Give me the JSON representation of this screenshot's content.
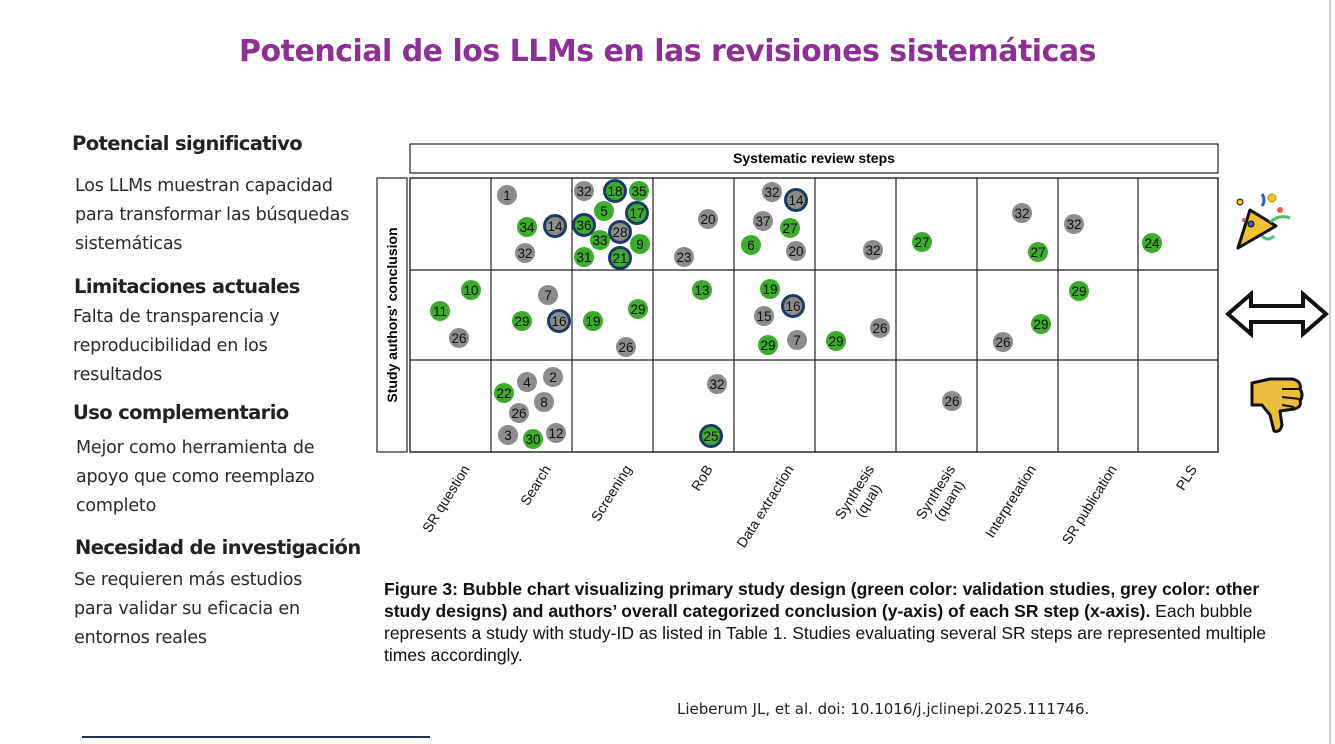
{
  "title": "Potencial de los LLMs en las revisiones sistemáticas",
  "sections": [
    {
      "heading": "Potencial significativo",
      "body": "Los LLMs muestran capacidad para transformar las búsquedas sistemáticas"
    },
    {
      "heading": "Limitaciones actuales",
      "body": "Falta de transparencia y reproducibilidad en los resultados"
    },
    {
      "heading": "Uso complementario",
      "body": "Mejor como herramienta de apoyo que como reemplazo completo"
    },
    {
      "heading": "Necesidad de investigación",
      "body": "Se requieren más estudios para validar su eficacia en entornos reales"
    }
  ],
  "chart_data": {
    "type": "scatter",
    "title": "Systematic review steps",
    "ylabel": "Study authors' conclusion",
    "categories": [
      "SR question",
      "Search",
      "Screening",
      "RoB",
      "Data extraction",
      "Synthesis\n(qual)",
      "Synthesis\n(quant)",
      "Interpretation",
      "SR publication",
      "PLS"
    ],
    "rows": [
      "positive",
      "neutral",
      "negative"
    ],
    "row_icons": [
      "party-popper-icon",
      "double-arrow-icon",
      "thumbs-down-icon"
    ],
    "colors": {
      "validation": "#3dab2b",
      "other": "#8c8c8c",
      "outline": "#1c3a66"
    },
    "bubbles": [
      {
        "id": "1",
        "step": "Search",
        "row": "positive",
        "design": "other",
        "outlined": false
      },
      {
        "id": "34",
        "step": "Search",
        "row": "positive",
        "design": "validation",
        "outlined": false
      },
      {
        "id": "14",
        "step": "Search",
        "row": "positive",
        "design": "other",
        "outlined": true
      },
      {
        "id": "32",
        "step": "Search",
        "row": "positive",
        "design": "other",
        "outlined": false
      },
      {
        "id": "32",
        "step": "Screening",
        "row": "positive",
        "design": "other",
        "outlined": false
      },
      {
        "id": "18",
        "step": "Screening",
        "row": "positive",
        "design": "validation",
        "outlined": true
      },
      {
        "id": "35",
        "step": "Screening",
        "row": "positive",
        "design": "validation",
        "outlined": false
      },
      {
        "id": "5",
        "step": "Screening",
        "row": "positive",
        "design": "validation",
        "outlined": false
      },
      {
        "id": "17",
        "step": "Screening",
        "row": "positive",
        "design": "validation",
        "outlined": true
      },
      {
        "id": "36",
        "step": "Screening",
        "row": "positive",
        "design": "validation",
        "outlined": true
      },
      {
        "id": "28",
        "step": "Screening",
        "row": "positive",
        "design": "other",
        "outlined": true
      },
      {
        "id": "33",
        "step": "Screening",
        "row": "positive",
        "design": "validation",
        "outlined": false
      },
      {
        "id": "9",
        "step": "Screening",
        "row": "positive",
        "design": "validation",
        "outlined": false
      },
      {
        "id": "31",
        "step": "Screening",
        "row": "positive",
        "design": "validation",
        "outlined": false
      },
      {
        "id": "21",
        "step": "Screening",
        "row": "positive",
        "design": "validation",
        "outlined": true
      },
      {
        "id": "20",
        "step": "RoB",
        "row": "positive",
        "design": "other",
        "outlined": false
      },
      {
        "id": "23",
        "step": "RoB",
        "row": "positive",
        "design": "other",
        "outlined": false
      },
      {
        "id": "32",
        "step": "Data extraction",
        "row": "positive",
        "design": "other",
        "outlined": false
      },
      {
        "id": "14",
        "step": "Data extraction",
        "row": "positive",
        "design": "other",
        "outlined": true
      },
      {
        "id": "37",
        "step": "Data extraction",
        "row": "positive",
        "design": "other",
        "outlined": false
      },
      {
        "id": "27",
        "step": "Data extraction",
        "row": "positive",
        "design": "validation",
        "outlined": false
      },
      {
        "id": "6",
        "step": "Data extraction",
        "row": "positive",
        "design": "validation",
        "outlined": false
      },
      {
        "id": "20",
        "step": "Data extraction",
        "row": "positive",
        "design": "other",
        "outlined": false
      },
      {
        "id": "32",
        "step": "Synthesis (qual)",
        "row": "positive",
        "design": "other",
        "outlined": false
      },
      {
        "id": "27",
        "step": "Synthesis (quant)",
        "row": "positive",
        "design": "validation",
        "outlined": false
      },
      {
        "id": "32",
        "step": "Interpretation",
        "row": "positive",
        "design": "other",
        "outlined": false
      },
      {
        "id": "27",
        "step": "Interpretation",
        "row": "positive",
        "design": "validation",
        "outlined": false
      },
      {
        "id": "32",
        "step": "SR publication",
        "row": "positive",
        "design": "other",
        "outlined": false
      },
      {
        "id": "24",
        "step": "PLS",
        "row": "positive",
        "design": "validation",
        "outlined": false
      },
      {
        "id": "10",
        "step": "SR question",
        "row": "neutral",
        "design": "validation",
        "outlined": false
      },
      {
        "id": "11",
        "step": "SR question",
        "row": "neutral",
        "design": "validation",
        "outlined": false
      },
      {
        "id": "26",
        "step": "SR question",
        "row": "neutral",
        "design": "other",
        "outlined": false
      },
      {
        "id": "7",
        "step": "Search",
        "row": "neutral",
        "design": "other",
        "outlined": false
      },
      {
        "id": "29",
        "step": "Search",
        "row": "neutral",
        "design": "validation",
        "outlined": false
      },
      {
        "id": "16",
        "step": "Search",
        "row": "neutral",
        "design": "other",
        "outlined": true
      },
      {
        "id": "19",
        "step": "Screening",
        "row": "neutral",
        "design": "validation",
        "outlined": false
      },
      {
        "id": "29",
        "step": "Screening",
        "row": "neutral",
        "design": "validation",
        "outlined": false
      },
      {
        "id": "26",
        "step": "Screening",
        "row": "neutral",
        "design": "other",
        "outlined": false
      },
      {
        "id": "13",
        "step": "RoB",
        "row": "neutral",
        "design": "validation",
        "outlined": false
      },
      {
        "id": "19",
        "step": "Data extraction",
        "row": "neutral",
        "design": "validation",
        "outlined": false
      },
      {
        "id": "16",
        "step": "Data extraction",
        "row": "neutral",
        "design": "other",
        "outlined": true
      },
      {
        "id": "15",
        "step": "Data extraction",
        "row": "neutral",
        "design": "other",
        "outlined": false
      },
      {
        "id": "29",
        "step": "Data extraction",
        "row": "neutral",
        "design": "validation",
        "outlined": false
      },
      {
        "id": "7",
        "step": "Data extraction",
        "row": "neutral",
        "design": "other",
        "outlined": false
      },
      {
        "id": "29",
        "step": "Synthesis (qual)",
        "row": "neutral",
        "design": "validation",
        "outlined": false
      },
      {
        "id": "26",
        "step": "Synthesis (qual)",
        "row": "neutral",
        "design": "other",
        "outlined": false
      },
      {
        "id": "29",
        "step": "Interpretation",
        "row": "neutral",
        "design": "validation",
        "outlined": false
      },
      {
        "id": "26",
        "step": "Interpretation",
        "row": "neutral",
        "design": "other",
        "outlined": false
      },
      {
        "id": "29",
        "step": "SR publication",
        "row": "neutral",
        "design": "validation",
        "outlined": false
      },
      {
        "id": "2",
        "step": "Search",
        "row": "negative",
        "design": "other",
        "outlined": false
      },
      {
        "id": "4",
        "step": "Search",
        "row": "negative",
        "design": "other",
        "outlined": false
      },
      {
        "id": "22",
        "step": "Search",
        "row": "negative",
        "design": "validation",
        "outlined": false
      },
      {
        "id": "8",
        "step": "Search",
        "row": "negative",
        "design": "other",
        "outlined": false
      },
      {
        "id": "26",
        "step": "Search",
        "row": "negative",
        "design": "other",
        "outlined": false
      },
      {
        "id": "3",
        "step": "Search",
        "row": "negative",
        "design": "other",
        "outlined": false
      },
      {
        "id": "30",
        "step": "Search",
        "row": "negative",
        "design": "validation",
        "outlined": false
      },
      {
        "id": "12",
        "step": "Search",
        "row": "negative",
        "design": "other",
        "outlined": false
      },
      {
        "id": "32",
        "step": "RoB",
        "row": "negative",
        "design": "other",
        "outlined": false
      },
      {
        "id": "25",
        "step": "RoB",
        "row": "negative",
        "design": "validation",
        "outlined": true
      },
      {
        "id": "26",
        "step": "Synthesis (quant)",
        "row": "negative",
        "design": "other",
        "outlined": false
      }
    ],
    "caption_bold": "Figure 3: Bubble chart visualizing primary study design (green color: validation studies, grey color: other study designs) and authors’ overall categorized conclusion (y-axis) of each SR step (x-axis).",
    "caption_rest": " Each bubble represents a study with study-ID as listed in Table 1. Studies evaluating several SR steps are represented multiple times accordingly."
  },
  "citation": "Lieberum JL, et al. doi: 10.1016/j.jclinepi.2025.111746."
}
